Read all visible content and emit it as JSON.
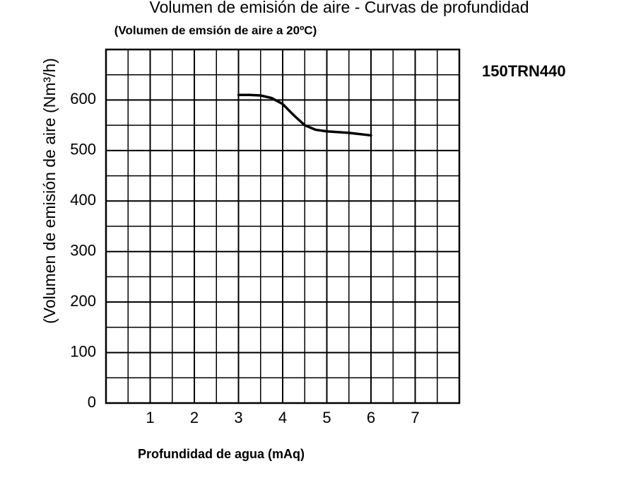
{
  "chart_data": {
    "type": "line",
    "title": "Volumen de emisión de aire - Curvas de profundidad",
    "subtitle": "(Volumen de emsión de aire a 20ºC)",
    "x_label": "Profundidad de agua (mAq)",
    "y_label": "(Volumen de emisión de aire (Nm³/h)",
    "x": [
      3,
      3.25,
      3.5,
      3.75,
      4,
      4.25,
      4.5,
      4.75,
      5,
      5.5,
      6
    ],
    "series": [
      {
        "name": "150TRN440",
        "color": "#000000",
        "values": [
          610,
          610,
          609,
          604,
          592,
          570,
          550,
          541,
          538,
          535,
          530
        ]
      }
    ],
    "xlim": [
      0,
      8
    ],
    "xticks": [
      1,
      2,
      3,
      4,
      5,
      6,
      7
    ],
    "ylim": [
      0,
      700
    ],
    "yticks": [
      0,
      100,
      200,
      300,
      400,
      500,
      600
    ],
    "grid": true,
    "minor_grid": {
      "x": 0.5,
      "y": 50
    }
  }
}
